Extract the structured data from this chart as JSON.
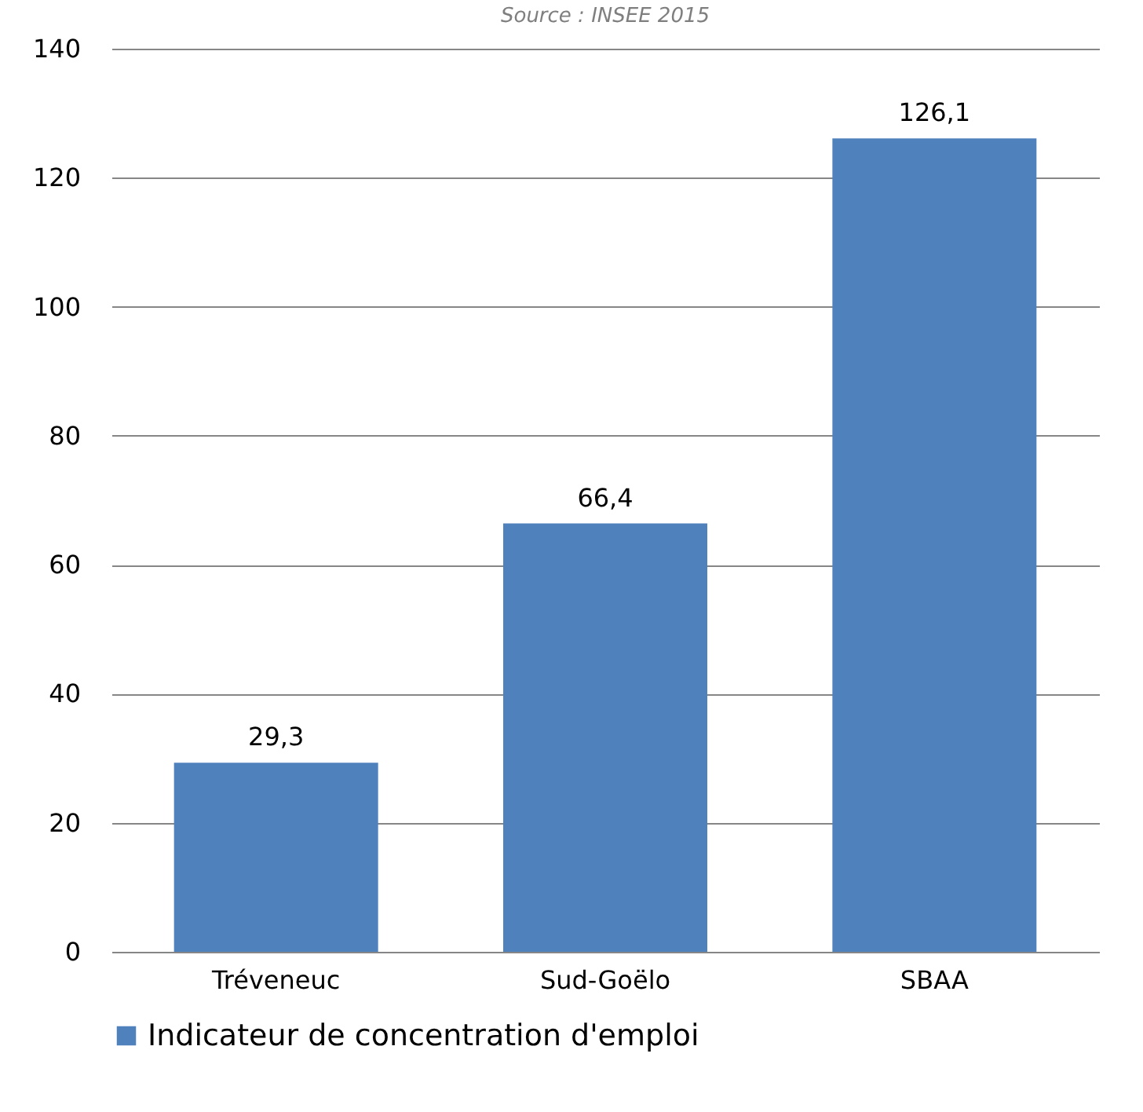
{
  "chart_data": {
    "type": "bar",
    "annotations": [
      "Source : INSEE 2015"
    ],
    "categories": [
      "Tréveneuc",
      "Sud-Goëlo",
      "SBAA"
    ],
    "series": [
      {
        "name": "Indicateur de concentration d'emploi",
        "color": "#4f81bd",
        "values": [
          29.3,
          66.4,
          126.1
        ],
        "value_labels": [
          "29,3",
          "66,4",
          "126,1"
        ]
      }
    ],
    "ylim": [
      0,
      140
    ],
    "yticks": [
      0,
      20,
      40,
      60,
      80,
      100,
      120,
      140
    ],
    "grid": "y",
    "legend": "bottom"
  }
}
